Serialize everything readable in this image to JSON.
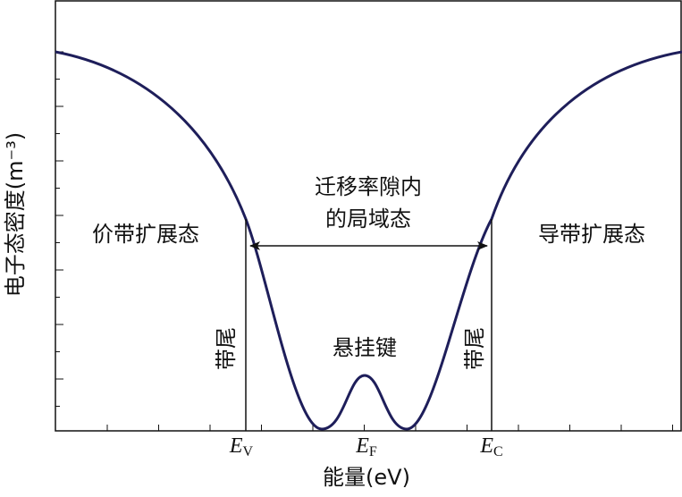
{
  "axes": {
    "y_label": "电子态密度(m⁻³)",
    "x_label": "能量(eV)"
  },
  "x_ticks": [
    {
      "main": "E",
      "sub": "V"
    },
    {
      "main": "E",
      "sub": "F"
    },
    {
      "main": "E",
      "sub": "C"
    }
  ],
  "regions": {
    "valence": "价带扩展态",
    "conduction": "导带扩展态",
    "gap": [
      "迁移率隙内",
      "的局域态"
    ],
    "dangling": "悬挂键",
    "tail_left": "带尾",
    "tail_right": "带尾"
  }
}
